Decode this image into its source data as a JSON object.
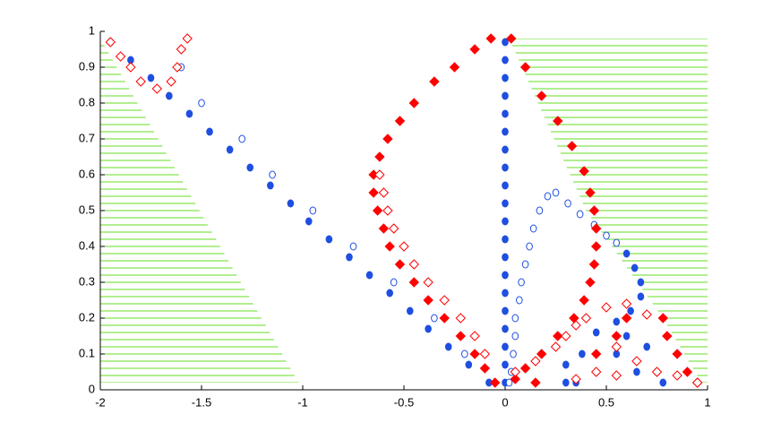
{
  "chart_data": {
    "type": "scatter",
    "xlim": [
      -2,
      1
    ],
    "ylim": [
      0,
      1
    ],
    "xticks": [
      -2,
      -1.5,
      -1,
      -0.5,
      0,
      0.5,
      1
    ],
    "yticks": [
      0,
      0.1,
      0.2,
      0.3,
      0.4,
      0.5,
      0.6,
      0.7,
      0.8,
      0.9,
      1
    ],
    "regions": [
      {
        "color": "#66dd22",
        "x": [
          -2,
          -1.02,
          -2
        ],
        "y": [
          0.98,
          0.02,
          0.02
        ]
      },
      {
        "color": "#66dd22",
        "x": [
          0.02,
          1,
          1,
          0.97,
          0.78,
          0.4
        ],
        "y": [
          0.98,
          0.98,
          0.02,
          0.02,
          0.2,
          0.5
        ]
      }
    ],
    "series": [
      {
        "color": "#1f4fe0",
        "marker": "circle",
        "filled": true,
        "x": [
          -1.95,
          -1.85,
          -1.75,
          -1.66,
          -1.56,
          -1.46,
          -1.36,
          -1.26,
          -1.16,
          -1.06,
          -0.97,
          -0.87,
          -0.77,
          -0.67,
          -0.57,
          -0.47,
          -0.38,
          -0.28,
          -0.18,
          -0.08,
          0,
          0,
          0,
          0,
          0,
          0,
          0,
          0,
          0,
          0,
          0,
          0,
          0,
          0,
          0,
          0,
          0,
          0,
          0,
          0,
          0.6,
          0.64,
          0.67,
          0.67,
          0.62,
          0.55,
          0.45,
          0.38,
          0.3,
          0.35,
          0.3,
          0.55,
          0.6,
          0.7,
          0.75,
          0.78,
          0.65
        ],
        "y": [
          0.97,
          0.92,
          0.87,
          0.82,
          0.77,
          0.72,
          0.67,
          0.62,
          0.57,
          0.52,
          0.47,
          0.42,
          0.37,
          0.32,
          0.27,
          0.22,
          0.17,
          0.12,
          0.07,
          0.02,
          0.97,
          0.92,
          0.87,
          0.82,
          0.77,
          0.72,
          0.67,
          0.62,
          0.57,
          0.52,
          0.47,
          0.42,
          0.37,
          0.32,
          0.27,
          0.22,
          0.17,
          0.12,
          0.07,
          0.02,
          0.38,
          0.34,
          0.3,
          0.26,
          0.22,
          0.19,
          0.16,
          0.1,
          0.07,
          0.02,
          0.02,
          0.1,
          0.15,
          0.12,
          0.05,
          0.02,
          0.05
        ]
      },
      {
        "color": "#1f4fe0",
        "marker": "circle",
        "filled": false,
        "x": [
          0.03,
          0.04,
          0.05,
          0.05,
          0.07,
          0.08,
          0.1,
          0.12,
          0.14,
          0.17,
          0.21,
          0.25,
          0.31,
          0.37,
          0.44,
          0.5,
          0.55,
          -1.6,
          -1.5,
          -1.3,
          -1.15,
          -0.95,
          -0.75,
          -0.55,
          -0.35,
          -0.2,
          0.02
        ],
        "y": [
          0.05,
          0.1,
          0.15,
          0.2,
          0.25,
          0.3,
          0.35,
          0.4,
          0.45,
          0.5,
          0.54,
          0.55,
          0.52,
          0.49,
          0.46,
          0.43,
          0.41,
          0.9,
          0.8,
          0.7,
          0.6,
          0.5,
          0.4,
          0.3,
          0.2,
          0.1,
          0.02
        ]
      },
      {
        "color": "#ff0000",
        "marker": "diamond",
        "filled": true,
        "x": [
          -0.07,
          -0.15,
          -0.25,
          -0.35,
          -0.45,
          -0.52,
          -0.58,
          -0.62,
          -0.65,
          -0.65,
          -0.63,
          -0.6,
          -0.57,
          -0.52,
          -0.45,
          -0.38,
          -0.3,
          -0.22,
          -0.15,
          -0.1,
          -0.05,
          0.03,
          0.1,
          0.18,
          0.26,
          0.33,
          0.39,
          0.42,
          0.44,
          0.45,
          0.45,
          0.44,
          0.42,
          0.39,
          0.34,
          0.26,
          0.18,
          0.1,
          0.05,
          0.15,
          0.45,
          0.55,
          0.6,
          0.78,
          0.8,
          0.85,
          0.9,
          0.95
        ],
        "y": [
          0.98,
          0.95,
          0.9,
          0.86,
          0.8,
          0.75,
          0.7,
          0.65,
          0.6,
          0.55,
          0.5,
          0.45,
          0.4,
          0.35,
          0.3,
          0.25,
          0.2,
          0.15,
          0.1,
          0.06,
          0.02,
          0.98,
          0.9,
          0.82,
          0.75,
          0.68,
          0.61,
          0.55,
          0.5,
          0.45,
          0.4,
          0.35,
          0.3,
          0.25,
          0.2,
          0.15,
          0.1,
          0.06,
          0.03,
          0.02,
          0.1,
          0.15,
          0.2,
          0.2,
          0.15,
          0.1,
          0.05,
          0.02
        ]
      },
      {
        "color": "#ff0000",
        "marker": "diamond",
        "filled": false,
        "x": [
          -1.95,
          -1.9,
          -1.85,
          -1.8,
          -1.72,
          -1.65,
          -1.62,
          -1.6,
          -1.57,
          -0.62,
          -0.6,
          -0.58,
          -0.55,
          -0.5,
          -0.45,
          -0.38,
          -0.3,
          -0.22,
          -0.15,
          -0.1,
          0.05,
          0.15,
          0.25,
          0.3,
          0.35,
          0.4,
          0.5,
          0.6,
          0.7,
          0.55,
          0.65,
          0.75,
          0.85,
          0.95,
          0.35,
          0.45,
          0.55
        ],
        "y": [
          0.97,
          0.93,
          0.9,
          0.86,
          0.84,
          0.86,
          0.9,
          0.95,
          0.98,
          0.6,
          0.55,
          0.5,
          0.45,
          0.4,
          0.35,
          0.3,
          0.25,
          0.2,
          0.15,
          0.1,
          0.05,
          0.08,
          0.12,
          0.15,
          0.18,
          0.2,
          0.23,
          0.24,
          0.21,
          0.12,
          0.08,
          0.05,
          0.04,
          0.02,
          0.03,
          0.05,
          0.04
        ]
      }
    ]
  }
}
